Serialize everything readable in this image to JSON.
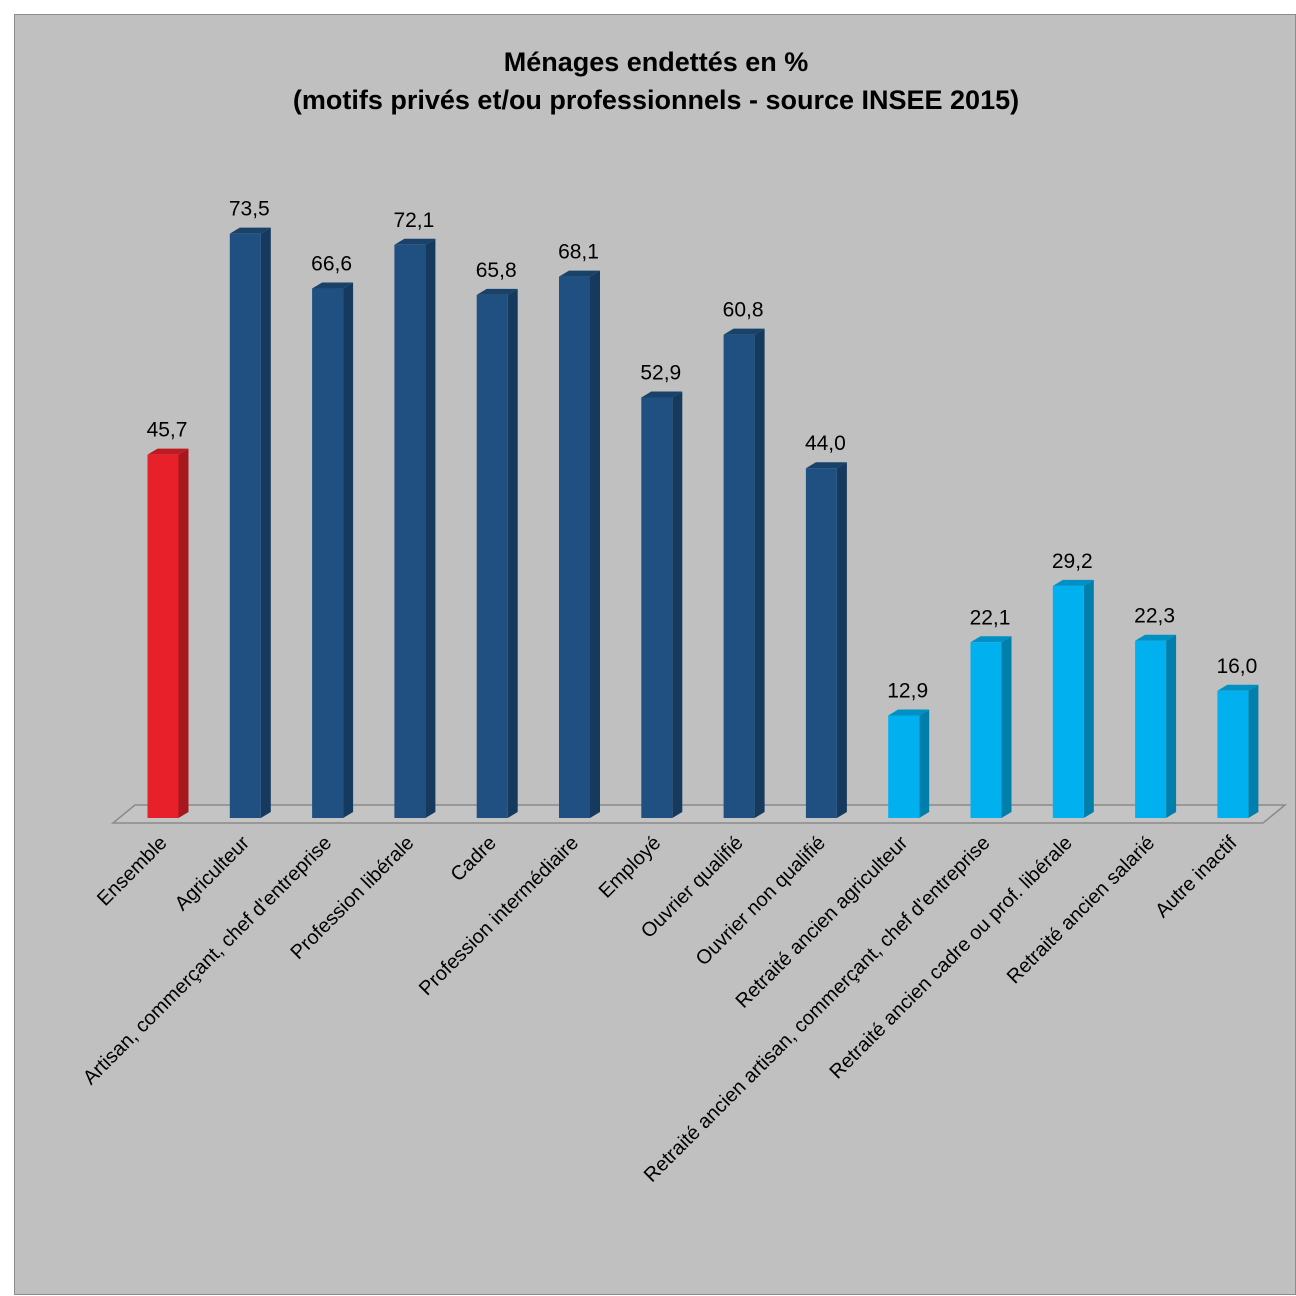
{
  "chart_data": {
    "type": "bar",
    "title": "Ménages endettés en %",
    "subtitle": "(motifs privés et/ou professionnels - source INSEE 2015)",
    "xlabel": "",
    "ylabel": "",
    "ylim": [
      0,
      80
    ],
    "grid": false,
    "legend": "none",
    "categories": [
      "Ensemble",
      "Agriculteur",
      "Artisan, commerçant, chef d'entreprise",
      "Profession libérale",
      "Cadre",
      "Profession intermédiaire",
      "Employé",
      "Ouvrier qualifié",
      "Ouvrier non qualifié",
      "Retraité ancien agriculteur",
      "Retraité ancien artisan, commerçant, chef d'entreprise",
      "Retraité ancien cadre ou prof. libérale",
      "Retraité ancien salarié",
      "Autre inactif"
    ],
    "values": [
      45.7,
      73.5,
      66.6,
      72.1,
      65.8,
      68.1,
      52.9,
      60.8,
      44.0,
      12.9,
      22.1,
      29.2,
      22.3,
      16.0
    ],
    "value_labels": [
      "45,7",
      "73,5",
      "66,6",
      "72,1",
      "65,8",
      "68,1",
      "52,9",
      "60,8",
      "44,0",
      "12,9",
      "22,1",
      "29,2",
      "22,3",
      "16,0"
    ],
    "bar_colors": {
      "total": "#e8202a",
      "active": "#1f5081",
      "retired": "#00b0ef"
    },
    "color_groups": [
      "total",
      "active",
      "active",
      "active",
      "active",
      "active",
      "active",
      "active",
      "active",
      "retired",
      "retired",
      "retired",
      "retired",
      "retired"
    ],
    "background_color": "#c0c0c0"
  }
}
